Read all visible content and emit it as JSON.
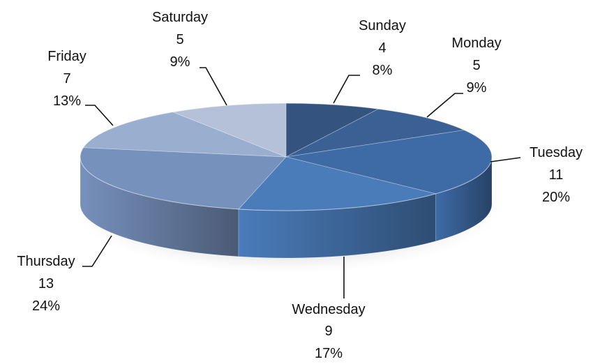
{
  "chart_data": {
    "type": "pie",
    "title": "",
    "categories": [
      "Sunday",
      "Monday",
      "Tuesday",
      "Wednesday",
      "Thursday",
      "Friday",
      "Saturday"
    ],
    "values": [
      4,
      5,
      11,
      9,
      13,
      7,
      5
    ],
    "percent_labels": [
      "8%",
      "9%",
      "20%",
      "17%",
      "24%",
      "13%",
      "9%"
    ],
    "legend": "none",
    "style": "3d",
    "colors": [
      "#34547f",
      "#3b6094",
      "#3e6ba6",
      "#4a7cba",
      "#7791bd",
      "#9aaecf",
      "#b5c1d8"
    ]
  }
}
